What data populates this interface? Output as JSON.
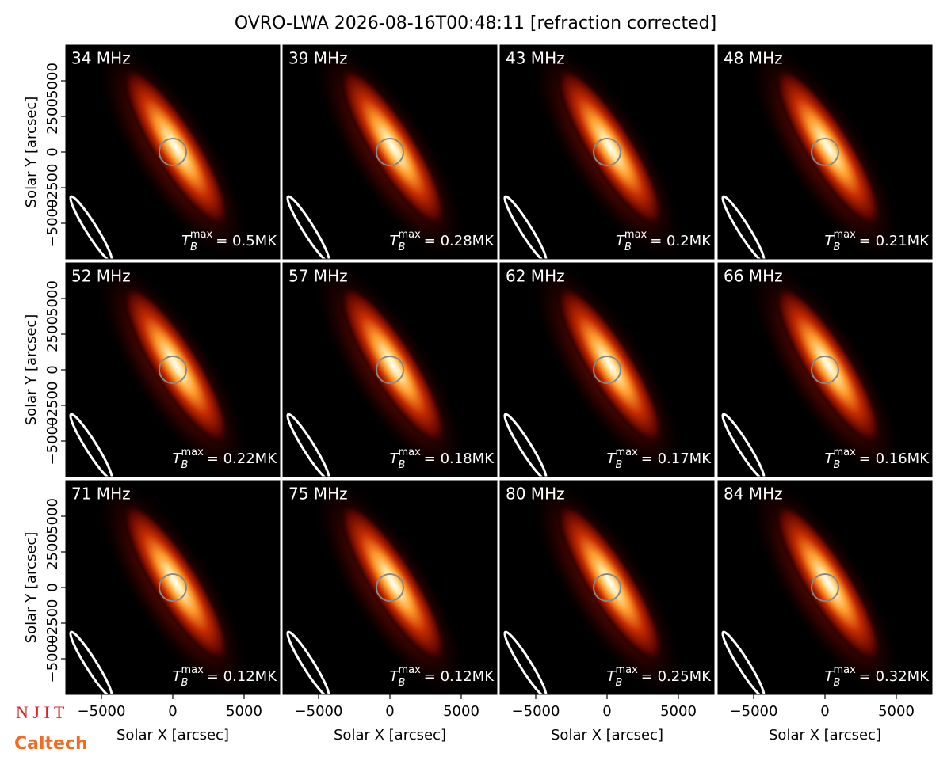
{
  "title": "OVRO-LWA 2026-08-16T00:48:11 [refraction corrected]",
  "logos": [
    "N J I T",
    "Caltech"
  ],
  "chart_data": [
    {
      "type": "image",
      "title": "34 MHz",
      "annotation": {
        "symbol": "T",
        "subscript": "B",
        "superscript": "max",
        "text": "= 0.5MK"
      },
      "xlim": [
        -7500,
        7500
      ],
      "ylim": [
        -7500,
        7500
      ],
      "ylabel": "Solar Y [arcsec]",
      "yticks": [
        {
          "value": -5000,
          "label": "−5000"
        },
        {
          "value": -2500,
          "label": "−2500"
        },
        0,
        2500,
        5000
      ]
    },
    {
      "type": "image",
      "title": "39 MHz",
      "annotation": {
        "symbol": "T",
        "subscript": "B",
        "superscript": "max",
        "text": "= 0.28MK"
      },
      "xlim": [
        -7500,
        7500
      ],
      "ylim": [
        -7500,
        7500
      ]
    },
    {
      "type": "image",
      "title": "43 MHz",
      "annotation": {
        "symbol": "T",
        "subscript": "B",
        "superscript": "max",
        "text": "= 0.2MK"
      },
      "xlim": [
        -7500,
        7500
      ],
      "ylim": [
        -7500,
        7500
      ]
    },
    {
      "type": "image",
      "title": "48 MHz",
      "annotation": {
        "symbol": "T",
        "subscript": "B",
        "superscript": "max",
        "text": "= 0.21MK"
      },
      "xlim": [
        -7500,
        7500
      ],
      "ylim": [
        -7500,
        7500
      ]
    },
    {
      "type": "image",
      "title": "52 MHz",
      "annotation": {
        "symbol": "T",
        "subscript": "B",
        "superscript": "max",
        "text": "= 0.22MK"
      },
      "xlim": [
        -7500,
        7500
      ],
      "ylim": [
        -7500,
        7500
      ],
      "ylabel": "Solar Y [arcsec]",
      "yticks": [
        {
          "value": -5000,
          "label": "−5000"
        },
        {
          "value": -2500,
          "label": "−2500"
        },
        0,
        2500,
        5000
      ]
    },
    {
      "type": "image",
      "title": "57 MHz",
      "annotation": {
        "symbol": "T",
        "subscript": "B",
        "superscript": "max",
        "text": "= 0.18MK"
      },
      "xlim": [
        -7500,
        7500
      ],
      "ylim": [
        -7500,
        7500
      ]
    },
    {
      "type": "image",
      "title": "62 MHz",
      "annotation": {
        "symbol": "T",
        "subscript": "B",
        "superscript": "max",
        "text": "= 0.17MK"
      },
      "xlim": [
        -7500,
        7500
      ],
      "ylim": [
        -7500,
        7500
      ]
    },
    {
      "type": "image",
      "title": "66 MHz",
      "annotation": {
        "symbol": "T",
        "subscript": "B",
        "superscript": "max",
        "text": "= 0.16MK"
      },
      "xlim": [
        -7500,
        7500
      ],
      "ylim": [
        -7500,
        7500
      ]
    },
    {
      "type": "image",
      "title": "71 MHz",
      "annotation": {
        "symbol": "T",
        "subscript": "B",
        "superscript": "max",
        "text": "= 0.12MK"
      },
      "xlim": [
        -7500,
        7500
      ],
      "ylim": [
        -7500,
        7500
      ],
      "ylabel": "Solar Y [arcsec]",
      "yticks": [
        {
          "value": -5000,
          "label": "−5000"
        },
        {
          "value": -2500,
          "label": "−2500"
        },
        0,
        2500,
        5000
      ],
      "xlabel": "Solar X [arcsec]",
      "xticks": [
        {
          "value": -5000,
          "label": "−5000"
        },
        0,
        5000
      ]
    },
    {
      "type": "image",
      "title": "75 MHz",
      "annotation": {
        "symbol": "T",
        "subscript": "B",
        "superscript": "max",
        "text": "= 0.12MK"
      },
      "xlim": [
        -7500,
        7500
      ],
      "ylim": [
        -7500,
        7500
      ],
      "xlabel": "Solar X [arcsec]",
      "xticks": [
        {
          "value": -5000,
          "label": "−5000"
        },
        0,
        5000
      ]
    },
    {
      "type": "image",
      "title": "80 MHz",
      "annotation": {
        "symbol": "T",
        "subscript": "B",
        "superscript": "max",
        "text": "= 0.25MK"
      },
      "xlim": [
        -7500,
        7500
      ],
      "ylim": [
        -7500,
        7500
      ],
      "xlabel": "Solar X [arcsec]",
      "xticks": [
        {
          "value": -5000,
          "label": "−5000"
        },
        0,
        5000
      ]
    },
    {
      "type": "image",
      "title": "84 MHz",
      "annotation": {
        "symbol": "T",
        "subscript": "B",
        "superscript": "max",
        "text": "= 0.32MK"
      },
      "xlim": [
        -7500,
        7500
      ],
      "ylim": [
        -7500,
        7500
      ],
      "xlabel": "Solar X [arcsec]",
      "xticks": [
        {
          "value": -5000,
          "label": "−5000"
        },
        0,
        5000
      ]
    }
  ]
}
